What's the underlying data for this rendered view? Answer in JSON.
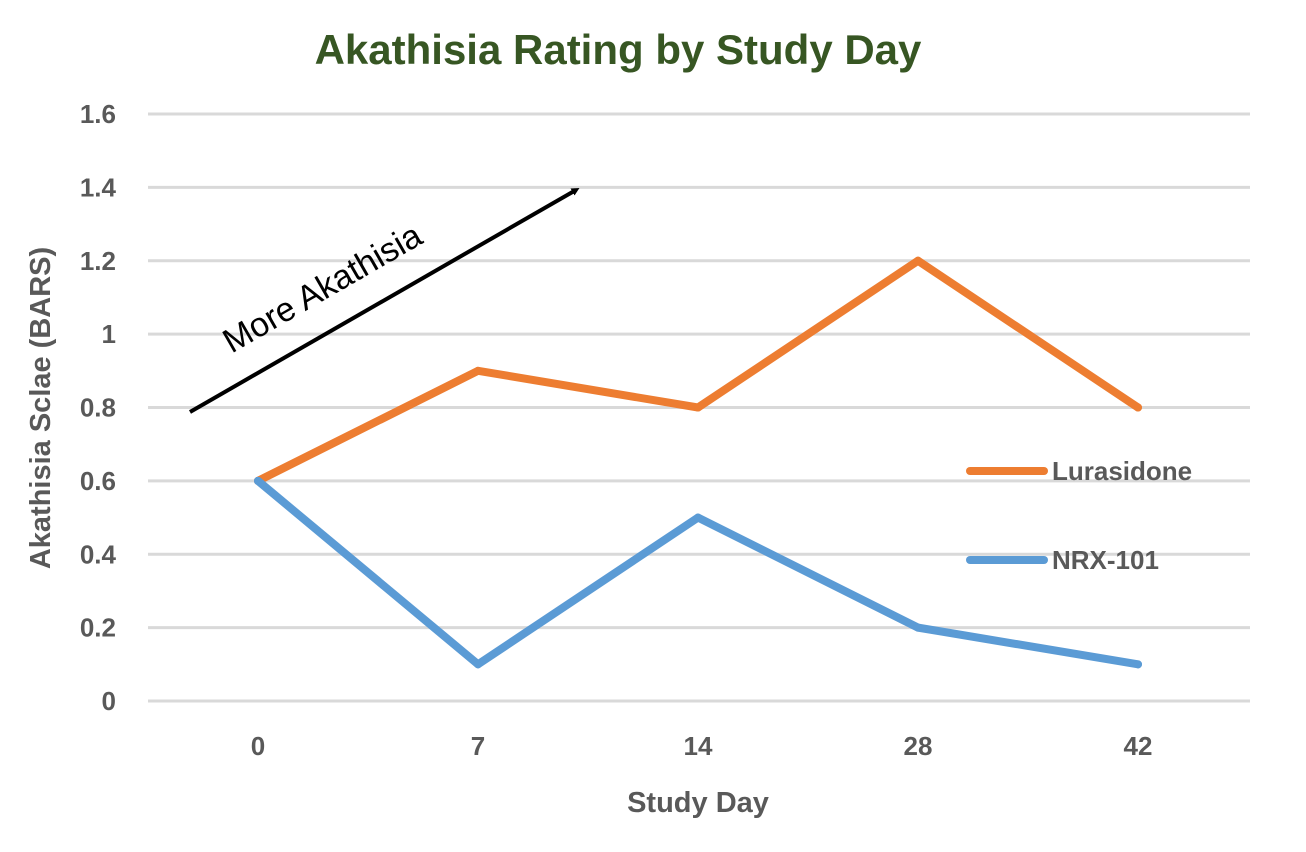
{
  "chart_data": {
    "type": "line",
    "title": "Akathisia Rating by Study Day",
    "xlabel": "Study Day",
    "ylabel": "Akathisia Sclae (BARS)",
    "categories": [
      "0",
      "7",
      "14",
      "28",
      "42"
    ],
    "ylim": [
      0,
      1.6
    ],
    "yticks": [
      "0",
      "0.2",
      "0.4",
      "0.6",
      "0.8",
      "1",
      "1.2",
      "1.4",
      "1.6"
    ],
    "grid": true,
    "legend_position": "right",
    "series": [
      {
        "name": "Lurasidone",
        "values": [
          0.6,
          0.9,
          0.8,
          1.2,
          0.8
        ],
        "color": "#ED7D31"
      },
      {
        "name": "NRX-101",
        "values": [
          0.6,
          0.1,
          0.5,
          0.2,
          0.1
        ],
        "color": "#5B9BD5"
      }
    ],
    "annotation": "More Akathisia"
  }
}
